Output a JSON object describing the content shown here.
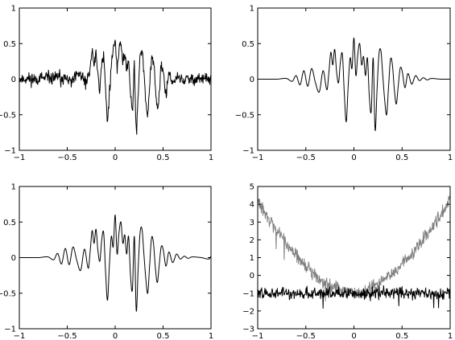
{
  "chart_data": [
    {
      "type": "line",
      "panel": "top-left",
      "title": "",
      "xlabel": "",
      "ylabel": "",
      "xlim": [
        -1,
        1
      ],
      "ylim": [
        -1,
        1
      ],
      "grid": false,
      "xticks": [
        -1,
        -0.5,
        0,
        0.5,
        1
      ],
      "xtick_labels": [
        "−1",
        "−0.5",
        "0",
        "0.5",
        "1"
      ],
      "yticks": [
        -1,
        -0.5,
        0,
        0.5,
        1
      ],
      "ytick_labels": [
        "−1",
        "−0.5",
        "0",
        "0.5",
        "1"
      ],
      "series": [
        {
          "color": "#000000",
          "noise": 0.09,
          "seed": 11,
          "x": [
            -1,
            -0.7,
            -0.55,
            -0.45,
            -0.38,
            -0.3,
            -0.26,
            -0.24,
            -0.22,
            -0.2,
            -0.18,
            -0.16,
            -0.14,
            -0.12,
            -0.1,
            -0.08,
            -0.06,
            -0.04,
            -0.02,
            0,
            0.02,
            0.04,
            0.06,
            0.08,
            0.1,
            0.12,
            0.14,
            0.16,
            0.18,
            0.2,
            0.22,
            0.24,
            0.26,
            0.28,
            0.3,
            0.32,
            0.34,
            0.36,
            0.38,
            0.4,
            0.42,
            0.44,
            0.46,
            0.48,
            0.5,
            0.53,
            0.56,
            0.6,
            0.65,
            0.7,
            0.8,
            1
          ],
          "y": [
            0,
            0.01,
            0.03,
            -0.05,
            0.08,
            -0.06,
            0.15,
            0.42,
            0.18,
            0.4,
            0.05,
            -0.15,
            0.2,
            0.35,
            -0.1,
            -0.62,
            -0.2,
            0.2,
            0.38,
            0.6,
            0.1,
            0.45,
            0.55,
            0.2,
            0.35,
            0.15,
            0.3,
            -0.2,
            -0.5,
            0.25,
            -0.82,
            -0.2,
            0.35,
            0.45,
            0.1,
            -0.3,
            -0.58,
            -0.1,
            0.3,
            0.25,
            -0.1,
            -0.45,
            -0.2,
            0.25,
            0.1,
            -0.25,
            0.12,
            -0.1,
            0.06,
            -0.03,
            0.01,
            0
          ]
        }
      ]
    },
    {
      "type": "line",
      "panel": "top-right",
      "title": "",
      "xlabel": "",
      "ylabel": "",
      "xlim": [
        -1,
        1
      ],
      "ylim": [
        -1,
        1
      ],
      "grid": false,
      "xticks": [
        -1,
        -0.5,
        0,
        0.5,
        1
      ],
      "xtick_labels": [
        "−1",
        "−0.5",
        "0",
        "0.5",
        "1"
      ],
      "yticks": [
        -1,
        -0.5,
        0,
        0.5,
        1
      ],
      "ytick_labels": [
        "−1",
        "−0.5",
        "0",
        "0.5",
        "1"
      ],
      "series": [
        {
          "color": "#000000",
          "noise": 0,
          "seed": 0,
          "x": [
            -1,
            -0.8,
            -0.7,
            -0.64,
            -0.6,
            -0.56,
            -0.52,
            -0.48,
            -0.44,
            -0.4,
            -0.36,
            -0.32,
            -0.28,
            -0.26,
            -0.24,
            -0.22,
            -0.2,
            -0.18,
            -0.16,
            -0.14,
            -0.12,
            -0.1,
            -0.08,
            -0.06,
            -0.04,
            -0.02,
            0,
            0.02,
            0.04,
            0.06,
            0.08,
            0.1,
            0.12,
            0.14,
            0.16,
            0.18,
            0.2,
            0.22,
            0.24,
            0.26,
            0.28,
            0.3,
            0.32,
            0.34,
            0.36,
            0.38,
            0.4,
            0.42,
            0.44,
            0.46,
            0.48,
            0.5,
            0.53,
            0.56,
            0.6,
            0.64,
            0.68,
            0.72,
            0.76,
            0.8,
            0.9,
            1
          ],
          "y": [
            0,
            0,
            0.01,
            -0.03,
            0.05,
            -0.08,
            0.12,
            -0.1,
            0.15,
            -0.05,
            -0.18,
            0.12,
            -0.15,
            0.1,
            0.38,
            0.2,
            0.42,
            0.1,
            -0.05,
            0.25,
            0.35,
            -0.2,
            -0.6,
            -0.1,
            0.3,
            0.15,
            0.58,
            0.05,
            0.35,
            0.5,
            0.2,
            0.32,
            0.05,
            0.3,
            -0.25,
            -0.45,
            0.3,
            -0.72,
            -0.15,
            0.35,
            0.4,
            0.05,
            -0.3,
            -0.5,
            -0.1,
            0.28,
            0.2,
            -0.15,
            -0.35,
            -0.1,
            0.15,
            0.12,
            -0.12,
            0.08,
            -0.07,
            0.05,
            -0.02,
            0.02,
            -0.01,
            0.01,
            0,
            0
          ]
        }
      ]
    },
    {
      "type": "line",
      "panel": "bottom-left",
      "title": "",
      "xlabel": "",
      "ylabel": "",
      "xlim": [
        -1,
        1
      ],
      "ylim": [
        -1,
        1
      ],
      "grid": false,
      "xticks": [
        -1,
        -0.5,
        0,
        0.5,
        1
      ],
      "xtick_labels": [
        "−1",
        "−0.5",
        "0",
        "0.5",
        "1"
      ],
      "yticks": [
        -1,
        -0.5,
        0,
        0.5,
        1
      ],
      "ytick_labels": [
        "−1",
        "−0.5",
        "0",
        "0.5",
        "1"
      ],
      "series": [
        {
          "color": "#000000",
          "noise": 0,
          "seed": 0,
          "x": [
            -1,
            -0.8,
            -0.7,
            -0.64,
            -0.6,
            -0.56,
            -0.52,
            -0.48,
            -0.44,
            -0.4,
            -0.36,
            -0.32,
            -0.28,
            -0.26,
            -0.24,
            -0.22,
            -0.2,
            -0.18,
            -0.16,
            -0.14,
            -0.12,
            -0.1,
            -0.08,
            -0.06,
            -0.04,
            -0.02,
            0,
            0.02,
            0.04,
            0.06,
            0.08,
            0.1,
            0.12,
            0.14,
            0.16,
            0.18,
            0.2,
            0.22,
            0.24,
            0.26,
            0.28,
            0.3,
            0.32,
            0.34,
            0.36,
            0.38,
            0.4,
            0.42,
            0.44,
            0.46,
            0.48,
            0.5,
            0.53,
            0.56,
            0.6,
            0.64,
            0.68,
            0.72,
            0.76,
            0.8,
            0.9,
            0.98,
            1
          ],
          "y": [
            0,
            0,
            0.01,
            -0.03,
            0.06,
            -0.09,
            0.13,
            -0.1,
            0.15,
            -0.04,
            -0.18,
            0.12,
            -0.15,
            0.1,
            0.38,
            0.2,
            0.4,
            0.1,
            -0.05,
            0.25,
            0.35,
            -0.2,
            -0.6,
            -0.1,
            0.3,
            0.15,
            0.6,
            0.05,
            0.35,
            0.5,
            0.2,
            0.32,
            0.05,
            0.3,
            -0.25,
            -0.45,
            0.3,
            -0.75,
            -0.15,
            0.35,
            0.4,
            0.05,
            -0.3,
            -0.5,
            -0.1,
            0.28,
            0.2,
            -0.15,
            -0.35,
            -0.1,
            0.15,
            0.12,
            -0.12,
            0.08,
            -0.07,
            0.05,
            -0.02,
            0.02,
            -0.01,
            0.01,
            0,
            -0.02,
            0.02
          ]
        }
      ]
    },
    {
      "type": "line",
      "panel": "bottom-right",
      "title": "",
      "xlabel": "",
      "ylabel": "",
      "xlim": [
        -1,
        1
      ],
      "ylim": [
        -3,
        5
      ],
      "grid": false,
      "xticks": [
        -1,
        -0.5,
        0,
        0.5,
        1
      ],
      "xtick_labels": [
        "−1",
        "−0.5",
        "0",
        "0.5",
        "1"
      ],
      "yticks": [
        -3,
        -2,
        -1,
        0,
        1,
        2,
        3,
        4,
        5
      ],
      "ytick_labels": [
        "−3",
        "−2",
        "−1",
        "0",
        "1",
        "2",
        "3",
        "4",
        "5"
      ],
      "series": [
        {
          "color": "#808080",
          "noise": 0.35,
          "seed": 29,
          "x": [
            -1,
            -0.9,
            -0.8,
            -0.7,
            -0.6,
            -0.5,
            -0.4,
            -0.3,
            -0.2,
            -0.1,
            0,
            0.1,
            0.2,
            0.3,
            0.4,
            0.5,
            0.6,
            0.7,
            0.8,
            0.9,
            1
          ],
          "y": [
            4.2,
            3.3,
            2.5,
            1.8,
            1.1,
            0.5,
            0.0,
            -0.4,
            -0.65,
            -0.85,
            -0.95,
            -0.85,
            -0.6,
            -0.3,
            0.1,
            0.6,
            1.2,
            1.9,
            2.6,
            3.4,
            4.3
          ]
        },
        {
          "color": "#000000",
          "noise": 0.32,
          "seed": 47,
          "x": [
            -1,
            -0.5,
            0,
            0.5,
            1
          ],
          "y": [
            -1.0,
            -1.0,
            -1.0,
            -1.0,
            -1.0
          ]
        }
      ]
    }
  ]
}
